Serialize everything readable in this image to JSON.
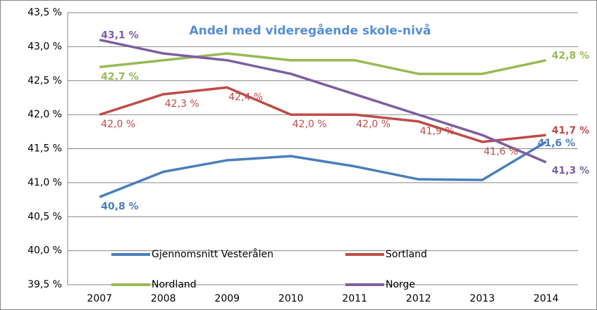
{
  "chart_data": {
    "type": "line",
    "title": "Andel med videregående skole-nivå",
    "categories": [
      "2007",
      "2008",
      "2009",
      "2010",
      "2011",
      "2012",
      "2013",
      "2014"
    ],
    "series": [
      {
        "name": "Gjennomsnitt Vesterålen",
        "color": "#4a7ebb",
        "values": [
          40.79,
          41.16,
          41.33,
          41.39,
          41.24,
          41.05,
          41.04,
          41.6
        ],
        "value_labels": [
          "40,8 %",
          null,
          null,
          null,
          null,
          null,
          null,
          "41,6 %"
        ]
      },
      {
        "name": "Sortland",
        "color": "#be4b48",
        "values": [
          42.0,
          42.3,
          42.4,
          42.0,
          42.0,
          41.9,
          41.6,
          41.7
        ],
        "value_labels": [
          "42,0 %",
          "42,3 %",
          "42,4 %",
          "42,0 %",
          "42,0 %",
          "41,9 %",
          "41,6 %",
          "41,7 %"
        ]
      },
      {
        "name": "Nordland",
        "color": "#98b954",
        "values": [
          42.7,
          42.8,
          42.9,
          42.8,
          42.8,
          42.6,
          42.6,
          42.8
        ],
        "value_labels": [
          "42,7 %",
          null,
          null,
          null,
          null,
          null,
          null,
          "42,8 %"
        ]
      },
      {
        "name": "Norge",
        "color": "#7d5fa0",
        "values": [
          43.1,
          42.9,
          42.8,
          42.6,
          42.3,
          42.0,
          41.7,
          41.3
        ],
        "value_labels": [
          "43,1 %",
          null,
          null,
          null,
          null,
          null,
          null,
          "41,3 %"
        ]
      }
    ],
    "ylim": [
      39.5,
      43.5
    ],
    "yticks": [
      {
        "value": 39.5,
        "label": "39,5 %"
      },
      {
        "value": 40.0,
        "label": "40,0 %"
      },
      {
        "value": 40.5,
        "label": "40,5 %"
      },
      {
        "value": 41.0,
        "label": "41,0 %"
      },
      {
        "value": 41.5,
        "label": "41,5 %"
      },
      {
        "value": 42.0,
        "label": "42,0 %"
      },
      {
        "value": 42.5,
        "label": "42,5 %"
      },
      {
        "value": 43.0,
        "label": "43,0 %"
      },
      {
        "value": 43.5,
        "label": "43,5 %"
      }
    ],
    "grid": true
  }
}
